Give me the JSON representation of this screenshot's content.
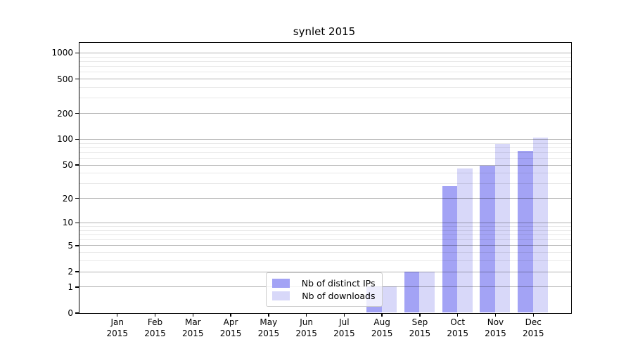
{
  "chart_data": {
    "type": "bar",
    "title": "synlet 2015",
    "categories": [
      "Jan",
      "Feb",
      "Mar",
      "Apr",
      "May",
      "Jun",
      "Jul",
      "Aug",
      "Sep",
      "Oct",
      "Nov",
      "Dec"
    ],
    "category_year": "2015",
    "series": [
      {
        "name": "Nb of distinct IPs",
        "color": "#a3a3f5",
        "values": [
          0,
          0,
          0,
          0,
          0,
          0,
          0,
          1,
          2,
          28,
          49,
          72
        ]
      },
      {
        "name": "Nb of downloads",
        "color": "#d8d8f9",
        "values": [
          0,
          0,
          0,
          0,
          0,
          0,
          0,
          1,
          2,
          45,
          87,
          103
        ]
      }
    ],
    "xlabel": "",
    "ylabel": "",
    "y_axis": {
      "scale": "log10(value+1)",
      "ticks": [
        0,
        1,
        2,
        5,
        10,
        20,
        50,
        100,
        200,
        500,
        1000
      ],
      "minor_gridlines": [
        3,
        4,
        6,
        7,
        8,
        9,
        30,
        40,
        60,
        70,
        80,
        90,
        300,
        400,
        600,
        700,
        800,
        900
      ],
      "top_value": 1308
    },
    "grid": {
      "major": "rgba(0,0,0,0.30)",
      "minor": "rgba(0,0,0,0.09)"
    },
    "legend": {
      "position": "lower center",
      "entries": [
        "Nb of distinct IPs",
        "Nb of downloads"
      ]
    }
  }
}
